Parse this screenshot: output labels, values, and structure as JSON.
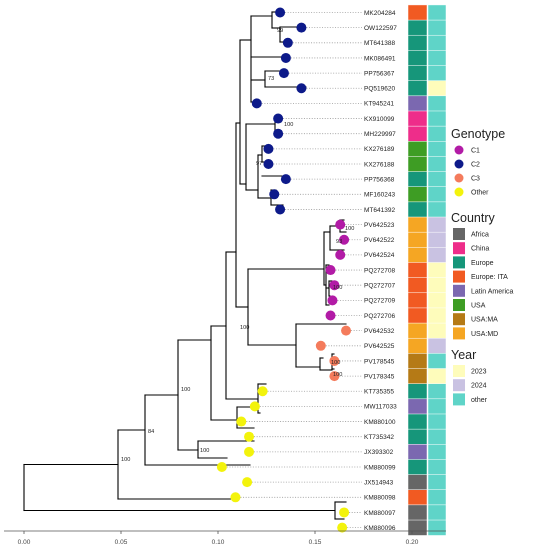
{
  "palette": {
    "genotype": {
      "C1": "#b21ba6",
      "C2": "#0d1a8a",
      "C3": "#f47b5c",
      "Other": "#f3f30c"
    },
    "country": {
      "Africa": "#666666",
      "China": "#ee2d8a",
      "Europe": "#16967a",
      "Europe: ITA": "#f15a22",
      "Latin America": "#7b68b0",
      "USA": "#3e9d24",
      "USA:MA": "#b57a16",
      "USA:MD": "#f5a623"
    },
    "year": {
      "2023": "#fefcbb",
      "2024": "#c9c2e2",
      "other": "#5fd4c8"
    }
  },
  "tree": {
    "tips": [
      {
        "label": "MK204284",
        "x": 0.132,
        "genotype": "C2",
        "country": "Europe: ITA",
        "year": "other"
      },
      {
        "label": "OW122597",
        "x": 0.143,
        "genotype": "C2",
        "country": "Europe",
        "year": "other"
      },
      {
        "label": "MT641388",
        "x": 0.136,
        "genotype": "C2",
        "country": "Europe",
        "year": "other"
      },
      {
        "label": "MK086491",
        "x": 0.135,
        "genotype": "C2",
        "country": "Europe",
        "year": "other"
      },
      {
        "label": "PP756367",
        "x": 0.134,
        "genotype": "C2",
        "country": "Europe",
        "year": "other"
      },
      {
        "label": "PQ519620",
        "x": 0.143,
        "genotype": "C2",
        "country": "Europe",
        "year": "2023"
      },
      {
        "label": "KT945241",
        "x": 0.12,
        "genotype": "C2",
        "country": "Latin America",
        "year": "other"
      },
      {
        "label": "KX910099",
        "x": 0.131,
        "genotype": "C2",
        "country": "China",
        "year": "other"
      },
      {
        "label": "MH229997",
        "x": 0.131,
        "genotype": "C2",
        "country": "China",
        "year": "other"
      },
      {
        "label": "KX276189",
        "x": 0.126,
        "genotype": "C2",
        "country": "USA",
        "year": "other"
      },
      {
        "label": "KX276188",
        "x": 0.126,
        "genotype": "C2",
        "country": "USA",
        "year": "other"
      },
      {
        "label": "PP756368",
        "x": 0.135,
        "genotype": "C2",
        "country": "Europe",
        "year": "other"
      },
      {
        "label": "MF160243",
        "x": 0.129,
        "genotype": "C2",
        "country": "USA",
        "year": "other"
      },
      {
        "label": "MT641392",
        "x": 0.132,
        "genotype": "C2",
        "country": "Europe",
        "year": "other"
      },
      {
        "label": "PV642523",
        "x": 0.163,
        "genotype": "C1",
        "country": "USA:MD",
        "year": "2024"
      },
      {
        "label": "PV642522",
        "x": 0.165,
        "genotype": "C1",
        "country": "USA:MD",
        "year": "2024"
      },
      {
        "label": "PV642524",
        "x": 0.163,
        "genotype": "C1",
        "country": "USA:MD",
        "year": "2024"
      },
      {
        "label": "PQ272708",
        "x": 0.158,
        "genotype": "C1",
        "country": "Europe: ITA",
        "year": "2023"
      },
      {
        "label": "PQ272707",
        "x": 0.16,
        "genotype": "C1",
        "country": "Europe: ITA",
        "year": "2023"
      },
      {
        "label": "PQ272709",
        "x": 0.159,
        "genotype": "C1",
        "country": "Europe: ITA",
        "year": "2023"
      },
      {
        "label": "PQ272706",
        "x": 0.158,
        "genotype": "C1",
        "country": "Europe: ITA",
        "year": "2023"
      },
      {
        "label": "PV642532",
        "x": 0.166,
        "genotype": "C3",
        "country": "USA:MD",
        "year": "2023"
      },
      {
        "label": "PV642525",
        "x": 0.153,
        "genotype": "C3",
        "country": "USA:MD",
        "year": "2024"
      },
      {
        "label": "PV178545",
        "x": 0.16,
        "genotype": "C3",
        "country": "USA:MA",
        "year": "other"
      },
      {
        "label": "PV178345",
        "x": 0.16,
        "genotype": "C3",
        "country": "USA:MA",
        "year": "2023"
      },
      {
        "label": "KT735355",
        "x": 0.123,
        "genotype": "Other",
        "country": "Europe",
        "year": "other"
      },
      {
        "label": "MW117033",
        "x": 0.119,
        "genotype": "Other",
        "country": "Latin America",
        "year": "other"
      },
      {
        "label": "KM880100",
        "x": 0.112,
        "genotype": "Other",
        "country": "Europe",
        "year": "other"
      },
      {
        "label": "KT735342",
        "x": 0.116,
        "genotype": "Other",
        "country": "Europe",
        "year": "other"
      },
      {
        "label": "JX393302",
        "x": 0.116,
        "genotype": "Other",
        "country": "Latin America",
        "year": "other"
      },
      {
        "label": "KM880099",
        "x": 0.102,
        "genotype": "Other",
        "country": "Europe",
        "year": "other"
      },
      {
        "label": "JX514943",
        "x": 0.115,
        "genotype": "Other",
        "country": "Africa",
        "year": "other"
      },
      {
        "label": "KM880098",
        "x": 0.109,
        "genotype": "Other",
        "country": "Europe: ITA",
        "year": "other"
      },
      {
        "label": "KM880097",
        "x": 0.165,
        "genotype": "Other",
        "country": "Africa",
        "year": "other"
      },
      {
        "label": "KM880096",
        "x": 0.164,
        "genotype": "Other",
        "country": "Africa",
        "year": "other"
      }
    ],
    "bootstrap_labels": [
      "99",
      "73",
      "100",
      "97",
      "100",
      "93",
      "100",
      "100",
      "100",
      "100",
      "100",
      "84",
      "100",
      "100"
    ],
    "x_ticks": [
      "0.00",
      "0.05",
      "0.10",
      "0.15",
      "0.20"
    ],
    "x_tick_values": [
      0,
      0.05,
      0.1,
      0.15,
      0.2
    ]
  },
  "legend": {
    "genotype_title": "Genotype",
    "genotype_items": [
      {
        "label": "C1",
        "key": "C1"
      },
      {
        "label": "C2",
        "key": "C2"
      },
      {
        "label": "C3",
        "key": "C3"
      },
      {
        "label": "Other",
        "key": "Other"
      }
    ],
    "country_title": "Country",
    "country_items": [
      {
        "label": "Africa",
        "key": "Africa"
      },
      {
        "label": "China",
        "key": "China"
      },
      {
        "label": "Europe",
        "key": "Europe"
      },
      {
        "label": "Europe: ITA",
        "key": "Europe: ITA"
      },
      {
        "label": "Latin America",
        "key": "Latin America"
      },
      {
        "label": "USA",
        "key": "USA"
      },
      {
        "label": "USA:MA",
        "key": "USA:MA"
      },
      {
        "label": "USA:MD",
        "key": "USA:MD"
      }
    ],
    "year_title": "Year",
    "year_items": [
      {
        "label": "2023",
        "key": "2023"
      },
      {
        "label": "2024",
        "key": "2024"
      },
      {
        "label": "other",
        "key": "other"
      }
    ]
  }
}
